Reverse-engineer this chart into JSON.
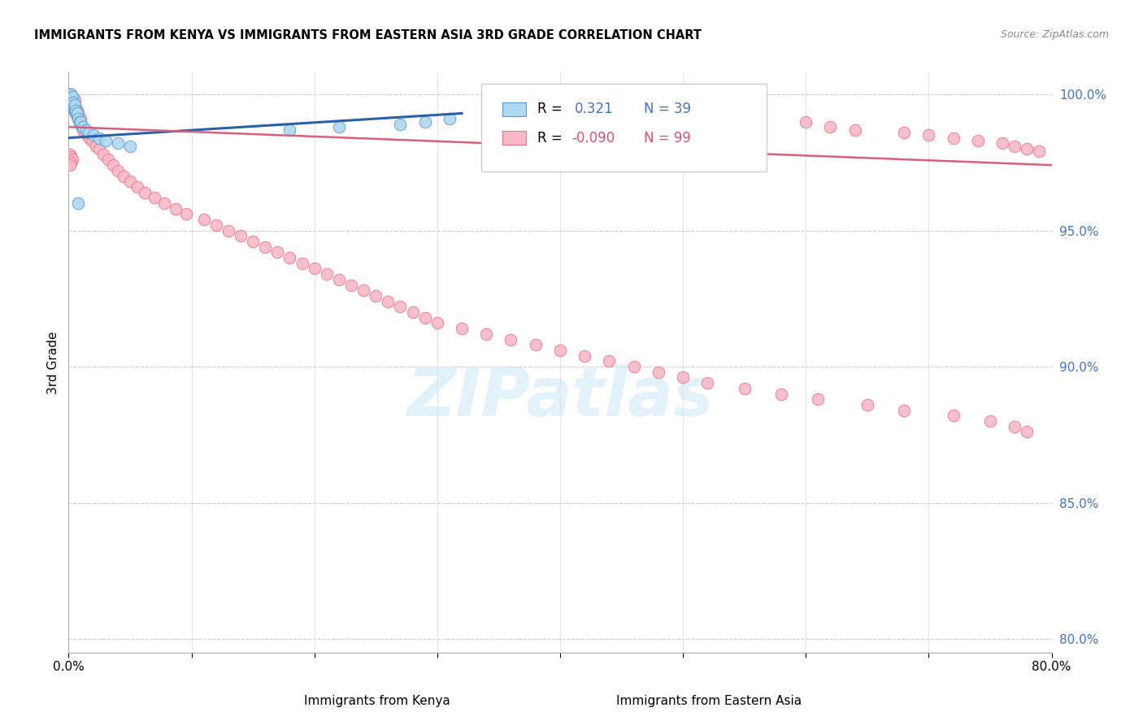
{
  "title": "IMMIGRANTS FROM KENYA VS IMMIGRANTS FROM EASTERN ASIA 3RD GRADE CORRELATION CHART",
  "source": "Source: ZipAtlas.com",
  "ylabel_left": "3rd Grade",
  "x_label_left": "Immigrants from Kenya",
  "x_label_right": "Immigrants from Eastern Asia",
  "xlim": [
    0.0,
    0.8
  ],
  "ylim": [
    0.795,
    1.008
  ],
  "yticks_right": [
    0.8,
    0.85,
    0.9,
    0.95,
    1.0
  ],
  "ytick_labels_right": [
    "80.0%",
    "85.0%",
    "90.0%",
    "95.0%",
    "100.0%"
  ],
  "kenya_R": 0.321,
  "kenya_N": 39,
  "eastern_asia_R": -0.09,
  "eastern_asia_N": 99,
  "kenya_color": "#add8f0",
  "eastern_asia_color": "#f9b8c8",
  "kenya_edge_color": "#5b9bd5",
  "eastern_asia_edge_color": "#e8768a",
  "kenya_trend_color": "#2b5fa8",
  "eastern_asia_trend_color": "#d95f7a",
  "watermark_text": "ZIPatlas",
  "watermark_color": "#d0e8f8",
  "background_color": "#ffffff",
  "legend_R_color": "#4472c4",
  "legend_R2_color": "#e05070",
  "kenya_trend_x": [
    0.0,
    0.32
  ],
  "kenya_trend_y": [
    0.984,
    0.993
  ],
  "ea_trend_x": [
    0.0,
    0.8
  ],
  "ea_trend_y": [
    0.988,
    0.974
  ],
  "kenya_x": [
    0.001,
    0.001,
    0.001,
    0.002,
    0.002,
    0.002,
    0.002,
    0.003,
    0.003,
    0.003,
    0.003,
    0.004,
    0.004,
    0.004,
    0.005,
    0.005,
    0.005,
    0.006,
    0.006,
    0.007,
    0.007,
    0.008,
    0.009,
    0.01,
    0.01,
    0.012,
    0.014,
    0.016,
    0.02,
    0.025,
    0.03,
    0.04,
    0.05,
    0.18,
    0.22,
    0.27,
    0.29,
    0.31,
    0.008
  ],
  "kenya_y": [
    0.999,
    0.998,
    1.0,
    0.998,
    0.999,
    1.0,
    0.997,
    0.997,
    0.998,
    0.999,
    0.996,
    0.995,
    0.996,
    0.997,
    0.994,
    0.995,
    0.996,
    0.993,
    0.994,
    0.992,
    0.993,
    0.991,
    0.99,
    0.989,
    0.99,
    0.988,
    0.987,
    0.986,
    0.985,
    0.984,
    0.983,
    0.982,
    0.981,
    0.987,
    0.988,
    0.989,
    0.99,
    0.991,
    0.96
  ],
  "ea_x": [
    0.001,
    0.001,
    0.001,
    0.002,
    0.002,
    0.002,
    0.003,
    0.003,
    0.003,
    0.004,
    0.004,
    0.005,
    0.005,
    0.005,
    0.006,
    0.006,
    0.007,
    0.007,
    0.008,
    0.008,
    0.009,
    0.01,
    0.01,
    0.011,
    0.012,
    0.013,
    0.015,
    0.017,
    0.019,
    0.022,
    0.025,
    0.028,
    0.032,
    0.036,
    0.04,
    0.045,
    0.05,
    0.056,
    0.062,
    0.07,
    0.078,
    0.087,
    0.096,
    0.11,
    0.12,
    0.13,
    0.14,
    0.15,
    0.16,
    0.17,
    0.18,
    0.19,
    0.2,
    0.21,
    0.22,
    0.23,
    0.24,
    0.25,
    0.26,
    0.27,
    0.28,
    0.29,
    0.3,
    0.32,
    0.34,
    0.36,
    0.38,
    0.4,
    0.42,
    0.44,
    0.46,
    0.48,
    0.5,
    0.52,
    0.55,
    0.58,
    0.61,
    0.65,
    0.68,
    0.72,
    0.75,
    0.77,
    0.78,
    0.6,
    0.62,
    0.64,
    0.68,
    0.7,
    0.72,
    0.74,
    0.76,
    0.77,
    0.78,
    0.79,
    0.001,
    0.002,
    0.003,
    0.002,
    0.001
  ],
  "ea_y": [
    0.999,
    1.0,
    0.998,
    0.999,
    0.997,
    1.0,
    0.998,
    0.996,
    0.999,
    0.997,
    0.995,
    0.996,
    0.998,
    0.994,
    0.993,
    0.995,
    0.992,
    0.994,
    0.991,
    0.993,
    0.99,
    0.989,
    0.991,
    0.988,
    0.987,
    0.986,
    0.985,
    0.984,
    0.983,
    0.981,
    0.98,
    0.978,
    0.976,
    0.974,
    0.972,
    0.97,
    0.968,
    0.966,
    0.964,
    0.962,
    0.96,
    0.958,
    0.956,
    0.954,
    0.952,
    0.95,
    0.948,
    0.946,
    0.944,
    0.942,
    0.94,
    0.938,
    0.936,
    0.934,
    0.932,
    0.93,
    0.928,
    0.926,
    0.924,
    0.922,
    0.92,
    0.918,
    0.916,
    0.914,
    0.912,
    0.91,
    0.908,
    0.906,
    0.904,
    0.902,
    0.9,
    0.898,
    0.896,
    0.894,
    0.892,
    0.89,
    0.888,
    0.886,
    0.884,
    0.882,
    0.88,
    0.878,
    0.876,
    0.99,
    0.988,
    0.987,
    0.986,
    0.985,
    0.984,
    0.983,
    0.982,
    0.981,
    0.98,
    0.979,
    0.978,
    0.977,
    0.976,
    0.975,
    0.974
  ]
}
